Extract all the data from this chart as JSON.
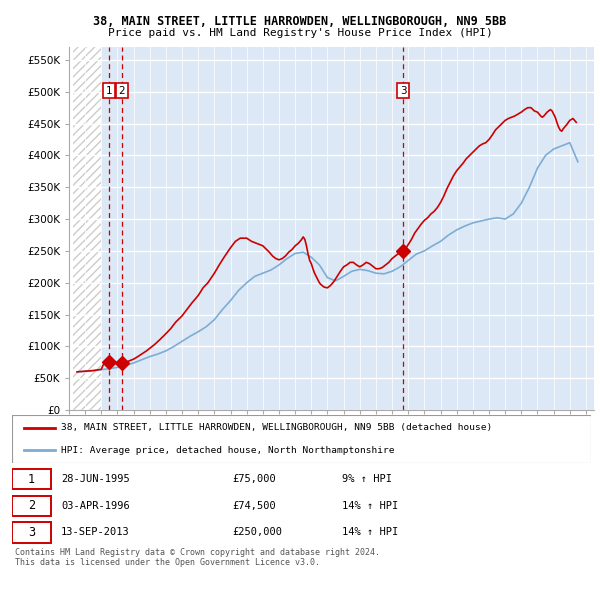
{
  "title_line1": "38, MAIN STREET, LITTLE HARROWDEN, WELLINGBOROUGH, NN9 5BB",
  "title_line2": "Price paid vs. HM Land Registry's House Price Index (HPI)",
  "ytick_values": [
    0,
    50000,
    100000,
    150000,
    200000,
    250000,
    300000,
    350000,
    400000,
    450000,
    500000,
    550000
  ],
  "xmin": 1993.25,
  "xmax": 2025.5,
  "ymin": 0,
  "ymax": 570000,
  "red_color": "#cc0000",
  "blue_color": "#7dadd4",
  "hatch_boundary": 1995.0,
  "vlines": [
    1995.49,
    1996.27,
    2013.7
  ],
  "sale_points": [
    {
      "date": 1995.49,
      "price": 75000,
      "label": "1"
    },
    {
      "date": 1996.27,
      "price": 74500,
      "label": "2"
    },
    {
      "date": 2013.7,
      "price": 250000,
      "label": "3"
    }
  ],
  "legend_line1": "38, MAIN STREET, LITTLE HARROWDEN, WELLINGBOROUGH, NN9 5BB (detached house)",
  "legend_line2": "HPI: Average price, detached house, North Northamptonshire",
  "table_data": [
    {
      "num": "1",
      "date": "28-JUN-1995",
      "price": "£75,000",
      "hpi": "9% ↑ HPI"
    },
    {
      "num": "2",
      "date": "03-APR-1996",
      "price": "£74,500",
      "hpi": "14% ↑ HPI"
    },
    {
      "num": "3",
      "date": "13-SEP-2013",
      "price": "£250,000",
      "hpi": "14% ↑ HPI"
    }
  ],
  "footnote": "Contains HM Land Registry data © Crown copyright and database right 2024.\nThis data is licensed under the Open Government Licence v3.0.",
  "hpi_x": [
    1993.5,
    1994.0,
    1994.5,
    1995.0,
    1995.5,
    1996.0,
    1996.5,
    1997.0,
    1997.5,
    1998.0,
    1998.5,
    1999.0,
    1999.5,
    2000.0,
    2000.5,
    2001.0,
    2001.5,
    2002.0,
    2002.5,
    2003.0,
    2003.5,
    2004.0,
    2004.5,
    2005.0,
    2005.5,
    2006.0,
    2006.5,
    2007.0,
    2007.5,
    2008.0,
    2008.5,
    2009.0,
    2009.5,
    2010.0,
    2010.5,
    2011.0,
    2011.5,
    2012.0,
    2012.5,
    2013.0,
    2013.5,
    2014.0,
    2014.5,
    2015.0,
    2015.5,
    2016.0,
    2016.5,
    2017.0,
    2017.5,
    2018.0,
    2018.5,
    2019.0,
    2019.5,
    2020.0,
    2020.5,
    2021.0,
    2021.5,
    2022.0,
    2022.5,
    2023.0,
    2023.5,
    2024.0,
    2024.5
  ],
  "hpi_y": [
    60000,
    61000,
    62000,
    63500,
    65000,
    67000,
    70000,
    74000,
    79000,
    84000,
    88000,
    93000,
    100000,
    108000,
    116000,
    123000,
    131000,
    142000,
    158000,
    172000,
    188000,
    200000,
    210000,
    215000,
    220000,
    228000,
    238000,
    246000,
    248000,
    240000,
    228000,
    208000,
    203000,
    210000,
    218000,
    221000,
    219000,
    215000,
    214000,
    218000,
    225000,
    235000,
    245000,
    250000,
    258000,
    265000,
    275000,
    283000,
    289000,
    294000,
    297000,
    300000,
    302000,
    300000,
    308000,
    325000,
    350000,
    380000,
    400000,
    410000,
    415000,
    420000,
    390000
  ],
  "red_x": [
    1993.5,
    1994.0,
    1994.5,
    1995.0,
    1995.1,
    1995.2,
    1995.3,
    1995.4,
    1995.49,
    1995.6,
    1995.7,
    1995.8,
    1995.9,
    1996.0,
    1996.1,
    1996.2,
    1996.27,
    1996.4,
    1996.5,
    1996.6,
    1996.7,
    1996.8,
    1997.0,
    1997.2,
    1997.5,
    1997.8,
    1998.0,
    1998.3,
    1998.6,
    1999.0,
    1999.3,
    1999.6,
    2000.0,
    2000.3,
    2000.6,
    2001.0,
    2001.3,
    2001.6,
    2002.0,
    2002.3,
    2002.6,
    2003.0,
    2003.3,
    2003.6,
    2004.0,
    2004.3,
    2004.6,
    2005.0,
    2005.2,
    2005.4,
    2005.6,
    2005.8,
    2006.0,
    2006.2,
    2006.4,
    2006.6,
    2006.8,
    2007.0,
    2007.1,
    2007.2,
    2007.3,
    2007.4,
    2007.5,
    2007.6,
    2007.7,
    2007.8,
    2007.9,
    2008.0,
    2008.1,
    2008.2,
    2008.3,
    2008.4,
    2008.5,
    2008.6,
    2008.8,
    2009.0,
    2009.2,
    2009.4,
    2009.6,
    2009.8,
    2010.0,
    2010.2,
    2010.4,
    2010.6,
    2010.8,
    2011.0,
    2011.2,
    2011.4,
    2011.6,
    2011.8,
    2012.0,
    2012.2,
    2012.4,
    2012.6,
    2012.8,
    2013.0,
    2013.2,
    2013.4,
    2013.6,
    2013.7,
    2013.8,
    2014.0,
    2014.2,
    2014.4,
    2014.6,
    2014.8,
    2015.0,
    2015.2,
    2015.4,
    2015.6,
    2015.8,
    2016.0,
    2016.2,
    2016.4,
    2016.6,
    2016.8,
    2017.0,
    2017.2,
    2017.4,
    2017.6,
    2017.8,
    2018.0,
    2018.2,
    2018.4,
    2018.6,
    2018.8,
    2019.0,
    2019.2,
    2019.4,
    2019.6,
    2019.8,
    2020.0,
    2020.2,
    2020.4,
    2020.6,
    2020.8,
    2021.0,
    2021.2,
    2021.4,
    2021.6,
    2021.8,
    2022.0,
    2022.1,
    2022.2,
    2022.3,
    2022.4,
    2022.5,
    2022.6,
    2022.7,
    2022.8,
    2022.9,
    2023.0,
    2023.1,
    2023.2,
    2023.3,
    2023.4,
    2023.5,
    2023.6,
    2023.8,
    2024.0,
    2024.2,
    2024.4
  ],
  "red_y": [
    60000,
    61000,
    62000,
    64000,
    70000,
    73000,
    75000,
    75000,
    75000,
    75000,
    74800,
    74500,
    74500,
    74500,
    74500,
    74500,
    74500,
    74500,
    75000,
    76000,
    77000,
    78000,
    80000,
    83000,
    88000,
    93000,
    97000,
    103000,
    110000,
    120000,
    128000,
    138000,
    148000,
    158000,
    168000,
    180000,
    192000,
    200000,
    215000,
    228000,
    240000,
    255000,
    265000,
    270000,
    270000,
    265000,
    262000,
    258000,
    253000,
    248000,
    242000,
    238000,
    236000,
    238000,
    242000,
    248000,
    252000,
    258000,
    260000,
    262000,
    265000,
    268000,
    272000,
    268000,
    258000,
    245000,
    235000,
    230000,
    222000,
    215000,
    210000,
    205000,
    200000,
    197000,
    193000,
    192000,
    196000,
    202000,
    210000,
    218000,
    225000,
    228000,
    232000,
    232000,
    228000,
    225000,
    228000,
    232000,
    230000,
    226000,
    222000,
    222000,
    224000,
    228000,
    232000,
    238000,
    242000,
    246000,
    248000,
    250000,
    252000,
    260000,
    268000,
    278000,
    285000,
    292000,
    298000,
    302000,
    308000,
    312000,
    318000,
    326000,
    336000,
    348000,
    358000,
    368000,
    376000,
    382000,
    388000,
    395000,
    400000,
    405000,
    410000,
    415000,
    418000,
    420000,
    425000,
    432000,
    440000,
    445000,
    450000,
    455000,
    458000,
    460000,
    462000,
    465000,
    468000,
    472000,
    475000,
    475000,
    470000,
    468000,
    465000,
    462000,
    460000,
    462000,
    465000,
    468000,
    470000,
    472000,
    470000,
    465000,
    460000,
    452000,
    445000,
    440000,
    438000,
    442000,
    448000,
    455000,
    458000,
    452000
  ]
}
